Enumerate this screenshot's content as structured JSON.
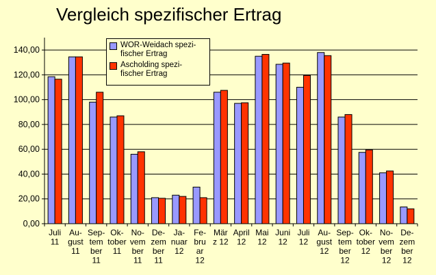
{
  "colors": {
    "background": "#ffffcc",
    "series1": "#9999ff",
    "series2": "#ff3300"
  },
  "chart_data": {
    "type": "bar",
    "title": "Vergleich spezifischer Ertrag",
    "xlabel": "",
    "ylabel": "",
    "ylim": [
      0,
      150
    ],
    "yticks": [
      "0,00",
      "20,00",
      "40,00",
      "60,00",
      "80,00",
      "100,00",
      "120,00",
      "140,00"
    ],
    "grid": true,
    "legend_position": "top-left",
    "categories": [
      [
        "Juli",
        "11"
      ],
      [
        "Au-",
        "gust",
        "11"
      ],
      [
        "Sep-",
        "tem",
        "ber",
        "11"
      ],
      [
        "Ok-",
        "tober",
        "11"
      ],
      [
        "No-",
        "vem",
        "ber",
        "11"
      ],
      [
        "De-",
        "zem",
        "ber",
        "11"
      ],
      [
        "Ja-",
        "nuar",
        "12"
      ],
      [
        "Fe-",
        "bru",
        "ar",
        "12"
      ],
      [
        "Mär",
        "z 12"
      ],
      [
        "April",
        "12"
      ],
      [
        "Mai",
        "12"
      ],
      [
        "Juni",
        "12"
      ],
      [
        "Juli",
        "12"
      ],
      [
        "Au-",
        "gust",
        "12"
      ],
      [
        "Sep-",
        "tem",
        "ber",
        "12"
      ],
      [
        "Ok-",
        "tober",
        "12"
      ],
      [
        "No-",
        "vem",
        "ber",
        "12"
      ],
      [
        "De-",
        "zem",
        "ber",
        "12"
      ]
    ],
    "series": [
      {
        "name": "WOR-Weidach spezi-fischer Ertrag",
        "legend_lines": [
          "WOR-Weidach spezi-",
          "fischer Ertrag"
        ],
        "values": [
          118.5,
          134.5,
          98,
          86,
          56,
          21,
          23,
          29.5,
          106,
          97,
          135,
          128.5,
          110,
          138,
          86,
          57.5,
          41,
          13.5
        ]
      },
      {
        "name": "Ascholding spezi-fischer Ertrag",
        "legend_lines": [
          "Ascholding spezi-",
          "fischer Ertrag"
        ],
        "values": [
          116.5,
          134.5,
          106,
          87,
          58,
          20.5,
          22,
          21,
          107.5,
          97.5,
          136.5,
          129.5,
          119.5,
          135.5,
          88,
          59.5,
          42.5,
          12
        ]
      }
    ]
  }
}
